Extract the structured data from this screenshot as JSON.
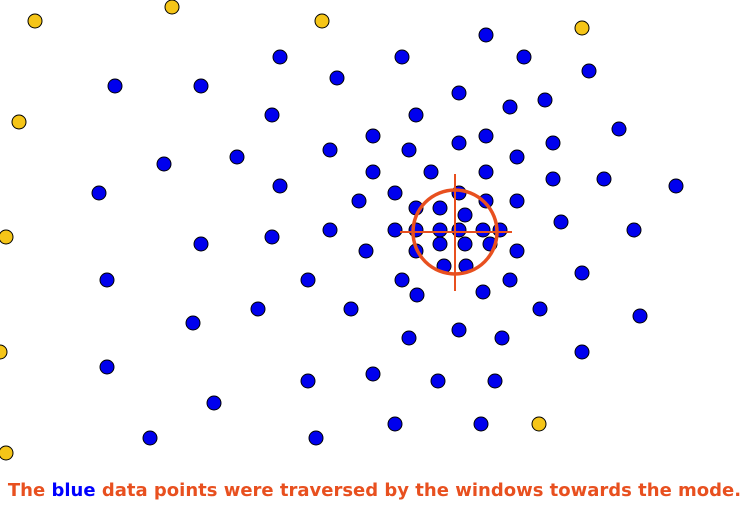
{
  "caption": {
    "start": "The",
    "highlight": "blue",
    "end": "data points were traversed by the windows towards the mode."
  }
}
